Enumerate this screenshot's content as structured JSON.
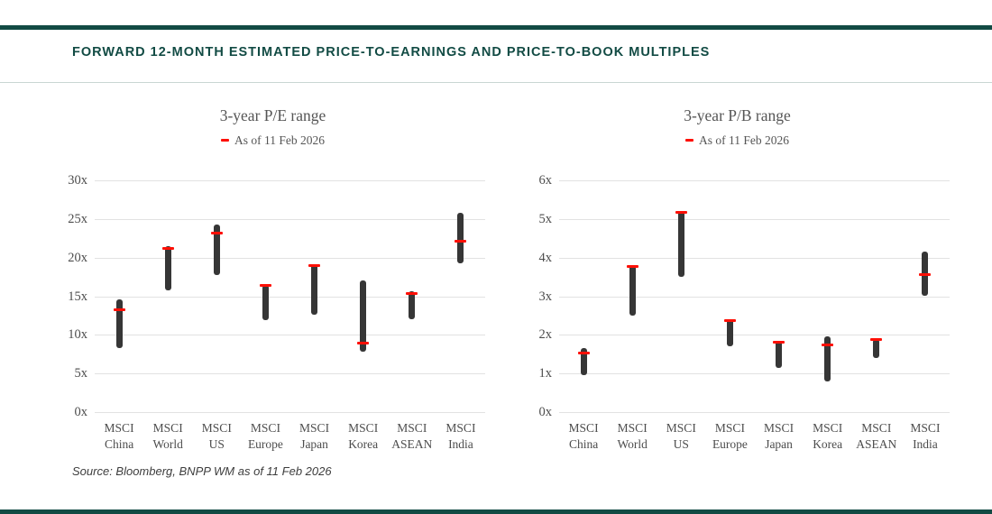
{
  "header": {
    "title": "FORWARD 12-MONTH ESTIMATED PRICE-TO-EARNINGS AND PRICE-TO-BOOK MULTIPLES"
  },
  "source": {
    "text": "Source: Bloomberg, BNPP WM as of 11 Feb 2026"
  },
  "colors": {
    "accent_teal": "#124b44",
    "bar": "#363636",
    "marker_red": "#fe0f05",
    "gridline": "#e2e2e2",
    "text_gray": "#555555"
  },
  "chart_data": [
    {
      "type": "range-bar",
      "title": "3-year P/E range",
      "legend": "As of 11 Feb 2026",
      "ylim": [
        0,
        30
      ],
      "ytick_step": 5,
      "ytick_suffix": "x",
      "grid": true,
      "legend_position": "top-center",
      "categories": [
        "MSCI China",
        "MSCI World",
        "MSCI US",
        "MSCI Europe",
        "MSCI Japan",
        "MSCI Korea",
        "MSCI ASEAN",
        "MSCI India"
      ],
      "points": [
        {
          "category": "MSCI China",
          "low": 8.3,
          "high": 14.6,
          "current": 13.2
        },
        {
          "category": "MSCI World",
          "low": 15.8,
          "high": 21.5,
          "current": 21.2
        },
        {
          "category": "MSCI US",
          "low": 17.8,
          "high": 24.3,
          "current": 23.2
        },
        {
          "category": "MSCI Europe",
          "low": 11.9,
          "high": 16.5,
          "current": 16.4
        },
        {
          "category": "MSCI Japan",
          "low": 12.6,
          "high": 19.2,
          "current": 19.0
        },
        {
          "category": "MSCI Korea",
          "low": 7.8,
          "high": 17.1,
          "current": 8.9
        },
        {
          "category": "MSCI ASEAN",
          "low": 12.0,
          "high": 15.6,
          "current": 15.4
        },
        {
          "category": "MSCI India",
          "low": 19.3,
          "high": 25.8,
          "current": 22.1
        }
      ]
    },
    {
      "type": "range-bar",
      "title": "3-year P/B range",
      "legend": "As of 11 Feb 2026",
      "ylim": [
        0,
        6
      ],
      "ytick_step": 1,
      "ytick_suffix": "x",
      "grid": true,
      "legend_position": "top-center",
      "categories": [
        "MSCI China",
        "MSCI World",
        "MSCI US",
        "MSCI Europe",
        "MSCI Japan",
        "MSCI Korea",
        "MSCI ASEAN",
        "MSCI India"
      ],
      "points": [
        {
          "category": "MSCI China",
          "low": 0.95,
          "high": 1.65,
          "current": 1.52
        },
        {
          "category": "MSCI World",
          "low": 2.5,
          "high": 3.8,
          "current": 3.78
        },
        {
          "category": "MSCI US",
          "low": 3.5,
          "high": 5.2,
          "current": 5.18
        },
        {
          "category": "MSCI Europe",
          "low": 1.7,
          "high": 2.4,
          "current": 2.37
        },
        {
          "category": "MSCI Japan",
          "low": 1.15,
          "high": 1.85,
          "current": 1.82
        },
        {
          "category": "MSCI Korea",
          "low": 0.8,
          "high": 1.95,
          "current": 1.75
        },
        {
          "category": "MSCI ASEAN",
          "low": 1.4,
          "high": 1.9,
          "current": 1.88
        },
        {
          "category": "MSCI India",
          "low": 3.0,
          "high": 4.15,
          "current": 3.55
        }
      ]
    }
  ]
}
